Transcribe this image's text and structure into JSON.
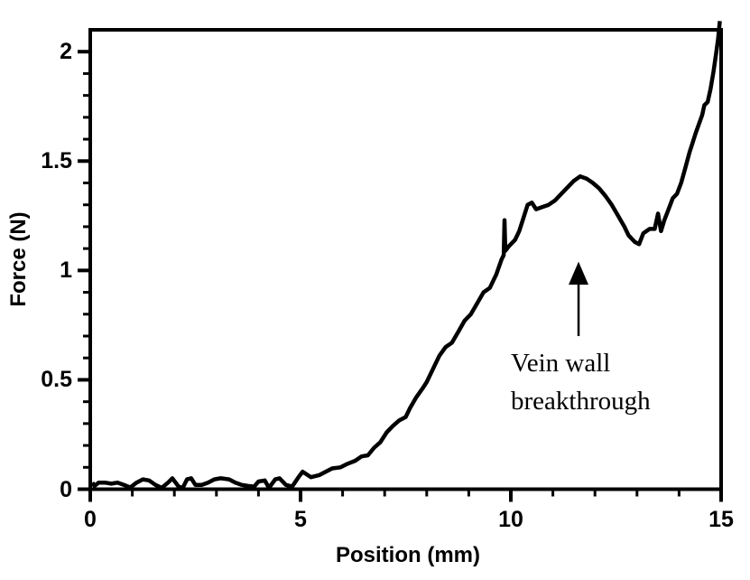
{
  "chart_data": {
    "type": "line",
    "title": "",
    "background_color": "#FFFFFF",
    "line_color": "#000000",
    "grid": false,
    "frame": true,
    "legend": null,
    "x_axis": {
      "label": "Position (mm)",
      "range": [
        0,
        15
      ],
      "minor_tick_step": 1,
      "ticks": [
        {
          "value": 0,
          "label": "0"
        },
        {
          "value": 5,
          "label": "5"
        },
        {
          "value": 10,
          "label": "10"
        },
        {
          "value": 15,
          "label": "15"
        }
      ]
    },
    "y_axis": {
      "label": "Force (N)",
      "range": [
        0,
        2.1
      ],
      "minor_tick_step": 0.1,
      "ticks": [
        {
          "value": 0,
          "label": "0"
        },
        {
          "value": 0.5,
          "label": "0.5"
        },
        {
          "value": 1,
          "label": "1"
        },
        {
          "value": 1.5,
          "label": "1.5"
        },
        {
          "value": 2,
          "label": "2"
        }
      ]
    },
    "annotation": {
      "line1": "Vein wall",
      "line2": "breakthrough",
      "arrow_x": 11.61,
      "arrow_tip_y": 1.04,
      "arrow_base_y": 0.935,
      "arrow_tail_y": 0.7
    },
    "series": [
      {
        "name": "force-vs-position",
        "points": [
          [
            0.05,
            0.03
          ],
          [
            0.1,
            0.015
          ],
          [
            0.2,
            0.03
          ],
          [
            0.35,
            0.03
          ],
          [
            0.5,
            0.025
          ],
          [
            0.65,
            0.03
          ],
          [
            0.8,
            0.02
          ],
          [
            0.95,
            0.008
          ],
          [
            1.1,
            0.03
          ],
          [
            1.25,
            0.045
          ],
          [
            1.4,
            0.04
          ],
          [
            1.55,
            0.02
          ],
          [
            1.7,
            0.006
          ],
          [
            1.85,
            0.03
          ],
          [
            1.95,
            0.05
          ],
          [
            2.1,
            0.012
          ],
          [
            2.2,
            0.006
          ],
          [
            2.3,
            0.045
          ],
          [
            2.4,
            0.05
          ],
          [
            2.5,
            0.02
          ],
          [
            2.65,
            0.02
          ],
          [
            2.8,
            0.03
          ],
          [
            2.95,
            0.045
          ],
          [
            3.1,
            0.05
          ],
          [
            3.3,
            0.045
          ],
          [
            3.45,
            0.03
          ],
          [
            3.6,
            0.02
          ],
          [
            3.75,
            0.015
          ],
          [
            3.9,
            0.012
          ],
          [
            4.0,
            0.035
          ],
          [
            4.15,
            0.04
          ],
          [
            4.25,
            0.006
          ],
          [
            4.4,
            0.045
          ],
          [
            4.5,
            0.05
          ],
          [
            4.65,
            0.02
          ],
          [
            4.8,
            0.012
          ],
          [
            4.95,
            0.055
          ],
          [
            5.05,
            0.08
          ],
          [
            5.25,
            0.055
          ],
          [
            5.45,
            0.065
          ],
          [
            5.6,
            0.08
          ],
          [
            5.75,
            0.095
          ],
          [
            5.95,
            0.1
          ],
          [
            6.1,
            0.115
          ],
          [
            6.3,
            0.13
          ],
          [
            6.45,
            0.15
          ],
          [
            6.6,
            0.155
          ],
          [
            6.75,
            0.19
          ],
          [
            6.9,
            0.215
          ],
          [
            7.05,
            0.26
          ],
          [
            7.2,
            0.29
          ],
          [
            7.35,
            0.315
          ],
          [
            7.5,
            0.33
          ],
          [
            7.6,
            0.37
          ],
          [
            7.75,
            0.42
          ],
          [
            7.9,
            0.46
          ],
          [
            8.0,
            0.49
          ],
          [
            8.15,
            0.55
          ],
          [
            8.3,
            0.61
          ],
          [
            8.45,
            0.65
          ],
          [
            8.6,
            0.67
          ],
          [
            8.75,
            0.72
          ],
          [
            8.9,
            0.77
          ],
          [
            9.05,
            0.8
          ],
          [
            9.2,
            0.85
          ],
          [
            9.35,
            0.9
          ],
          [
            9.5,
            0.92
          ],
          [
            9.65,
            0.98
          ],
          [
            9.78,
            1.05
          ],
          [
            9.83,
            1.07
          ],
          [
            9.85,
            1.23
          ],
          [
            9.87,
            1.09
          ],
          [
            9.95,
            1.11
          ],
          [
            10.05,
            1.13
          ],
          [
            10.1,
            1.14
          ],
          [
            10.2,
            1.18
          ],
          [
            10.3,
            1.24
          ],
          [
            10.4,
            1.3
          ],
          [
            10.5,
            1.31
          ],
          [
            10.6,
            1.28
          ],
          [
            10.75,
            1.29
          ],
          [
            10.9,
            1.3
          ],
          [
            11.05,
            1.32
          ],
          [
            11.2,
            1.35
          ],
          [
            11.35,
            1.38
          ],
          [
            11.5,
            1.41
          ],
          [
            11.65,
            1.43
          ],
          [
            11.8,
            1.42
          ],
          [
            11.95,
            1.4
          ],
          [
            12.1,
            1.375
          ],
          [
            12.25,
            1.34
          ],
          [
            12.4,
            1.3
          ],
          [
            12.55,
            1.25
          ],
          [
            12.7,
            1.2
          ],
          [
            12.8,
            1.16
          ],
          [
            12.95,
            1.13
          ],
          [
            13.05,
            1.12
          ],
          [
            13.15,
            1.17
          ],
          [
            13.3,
            1.19
          ],
          [
            13.42,
            1.19
          ],
          [
            13.5,
            1.26
          ],
          [
            13.57,
            1.18
          ],
          [
            13.65,
            1.23
          ],
          [
            13.75,
            1.28
          ],
          [
            13.85,
            1.33
          ],
          [
            13.95,
            1.35
          ],
          [
            14.05,
            1.4
          ],
          [
            14.15,
            1.47
          ],
          [
            14.25,
            1.54
          ],
          [
            14.4,
            1.63
          ],
          [
            14.55,
            1.71
          ],
          [
            14.6,
            1.755
          ],
          [
            14.68,
            1.77
          ],
          [
            14.75,
            1.83
          ],
          [
            14.82,
            1.91
          ],
          [
            14.88,
            1.99
          ],
          [
            14.93,
            2.06
          ],
          [
            14.97,
            2.14
          ]
        ]
      }
    ]
  }
}
